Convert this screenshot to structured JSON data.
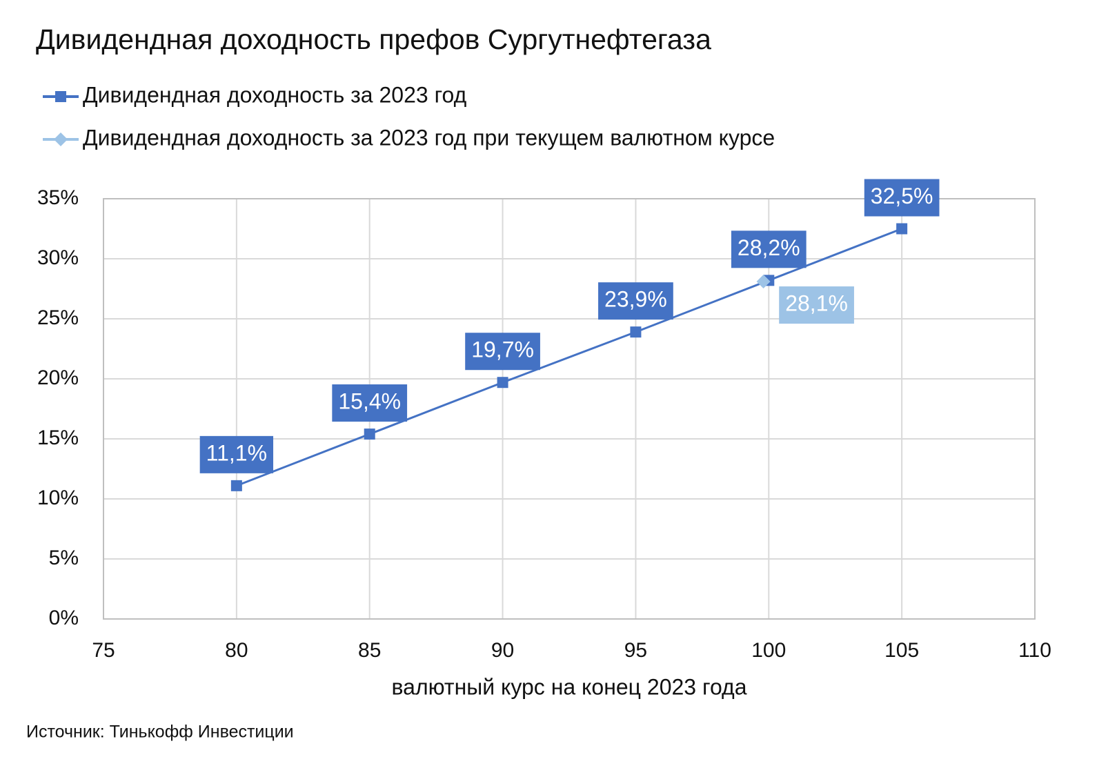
{
  "chart_data": {
    "type": "line",
    "title": "Дивидендная доходность префов Сургутнефтегаза",
    "x_label": "валютный курс  на конец 2023 года",
    "source": "Источник: Тинькофф Инвестиции",
    "series": [
      {
        "name": "Дивидендная доходность за 2023 год",
        "color": "#4472c4",
        "marker": "square",
        "x": [
          80,
          85,
          90,
          95,
          100,
          105
        ],
        "values": [
          11.1,
          15.4,
          19.7,
          23.9,
          28.2,
          32.5
        ],
        "value_labels": [
          "11,1%",
          "15,4%",
          "19,7%",
          "23,9%",
          "28,2%",
          "32,5%"
        ]
      },
      {
        "name": "Дивидендная доходность за 2023 год при текущем валютном курсе",
        "color": "#9dc3e6",
        "marker": "diamond",
        "x": [
          99.8
        ],
        "values": [
          28.1
        ],
        "value_labels": [
          "28,1%"
        ]
      }
    ],
    "xlim": [
      75,
      110
    ],
    "xticks": [
      75,
      80,
      85,
      90,
      95,
      100,
      105,
      110
    ],
    "ylim": [
      0,
      35
    ],
    "yticks": [
      {
        "value": 0,
        "label": "0%"
      },
      {
        "value": 5,
        "label": "5%"
      },
      {
        "value": 10,
        "label": "10%"
      },
      {
        "value": 15,
        "label": "15%"
      },
      {
        "value": 20,
        "label": "20%"
      },
      {
        "value": 25,
        "label": "25%"
      },
      {
        "value": 30,
        "label": "30%"
      },
      {
        "value": 35,
        "label": "35%"
      }
    ],
    "grid": true
  }
}
